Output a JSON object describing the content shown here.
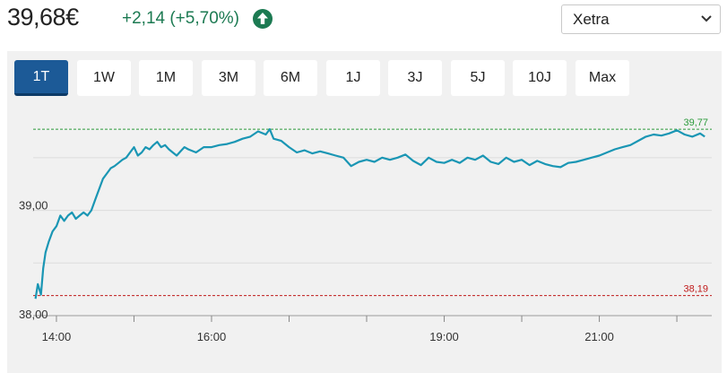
{
  "header": {
    "price": "39,68€",
    "change": "+2,14 (+5,70%)",
    "change_color": "#1c7a52",
    "trend_icon": "arrow-up-circle-icon",
    "exchange": {
      "selected": "Xetra"
    }
  },
  "tabs": [
    {
      "label": "1T",
      "active": true
    },
    {
      "label": "1W",
      "active": false
    },
    {
      "label": "1M",
      "active": false
    },
    {
      "label": "3M",
      "active": false
    },
    {
      "label": "6M",
      "active": false
    },
    {
      "label": "1J",
      "active": false
    },
    {
      "label": "3J",
      "active": false
    },
    {
      "label": "5J",
      "active": false
    },
    {
      "label": "10J",
      "active": false
    },
    {
      "label": "Max",
      "active": false
    }
  ],
  "chart_data": {
    "type": "line",
    "title": "",
    "xlabel": "",
    "ylabel": "",
    "ylim": [
      38.0,
      39.95
    ],
    "xlim_hours": [
      13.7,
      22.45
    ],
    "yticks": [
      {
        "value": 38.0,
        "label": "38,00"
      },
      {
        "value": 39.0,
        "label": "39,00"
      }
    ],
    "xticks": [
      {
        "value": 14.0,
        "label": "14:00"
      },
      {
        "value": 16.0,
        "label": "16:00"
      },
      {
        "value": 19.0,
        "label": "19:00"
      },
      {
        "value": 21.0,
        "label": "21:00"
      }
    ],
    "reference_lines": [
      {
        "value": 39.77,
        "label": "39,77",
        "color": "#2a9a3a"
      },
      {
        "value": 38.19,
        "label": "38,19",
        "color": "#c01a1a"
      }
    ],
    "line_color": "#1a96b4",
    "grid": true,
    "series": [
      {
        "x": [
          13.73,
          13.76,
          13.8,
          13.83,
          13.86,
          13.9,
          13.95,
          14.0,
          14.05,
          14.1,
          14.15,
          14.2,
          14.25,
          14.3,
          14.35,
          14.4,
          14.45,
          14.5,
          14.55,
          14.6,
          14.65,
          14.7,
          14.75,
          14.8,
          14.85,
          14.9,
          14.95,
          15.0,
          15.05,
          15.1,
          15.15,
          15.2,
          15.25,
          15.3,
          15.35,
          15.4,
          15.45,
          15.5,
          15.55,
          15.6,
          15.65,
          15.7,
          15.8,
          15.9,
          16.0,
          16.1,
          16.2,
          16.3,
          16.4,
          16.5,
          16.6,
          16.7,
          16.75,
          16.8,
          16.9,
          17.0,
          17.1,
          17.2,
          17.3,
          17.4,
          17.5,
          17.6,
          17.7,
          17.8,
          17.9,
          18.0,
          18.1,
          18.2,
          18.3,
          18.4,
          18.5,
          18.6,
          18.7,
          18.8,
          18.9,
          19.0,
          19.1,
          19.2,
          19.3,
          19.4,
          19.5,
          19.6,
          19.7,
          19.8,
          19.9,
          20.0,
          20.1,
          20.2,
          20.3,
          20.4,
          20.5,
          20.6,
          20.7,
          20.8,
          20.9,
          21.0,
          21.1,
          21.2,
          21.3,
          21.4,
          21.5,
          21.6,
          21.7,
          21.8,
          21.9,
          22.0,
          22.1,
          22.2,
          22.3,
          22.36
        ],
        "y": [
          38.16,
          38.3,
          38.2,
          38.45,
          38.6,
          38.7,
          38.8,
          38.85,
          38.95,
          38.9,
          38.95,
          38.98,
          38.92,
          38.95,
          38.98,
          38.95,
          39.0,
          39.1,
          39.2,
          39.3,
          39.35,
          39.4,
          39.42,
          39.45,
          39.48,
          39.5,
          39.55,
          39.6,
          39.52,
          39.55,
          39.6,
          39.58,
          39.62,
          39.65,
          39.6,
          39.62,
          39.58,
          39.55,
          39.52,
          39.56,
          39.6,
          39.58,
          39.55,
          39.6,
          39.6,
          39.62,
          39.63,
          39.65,
          39.68,
          39.7,
          39.75,
          39.72,
          39.77,
          39.68,
          39.66,
          39.6,
          39.55,
          39.57,
          39.54,
          39.56,
          39.54,
          39.52,
          39.5,
          39.42,
          39.46,
          39.48,
          39.46,
          39.5,
          39.48,
          39.5,
          39.53,
          39.47,
          39.43,
          39.5,
          39.46,
          39.45,
          39.48,
          39.45,
          39.5,
          39.48,
          39.52,
          39.46,
          39.44,
          39.5,
          39.46,
          39.48,
          39.43,
          39.47,
          39.44,
          39.42,
          39.41,
          39.45,
          39.46,
          39.48,
          39.5,
          39.52,
          39.55,
          39.58,
          39.6,
          39.62,
          39.66,
          39.7,
          39.72,
          39.71,
          39.73,
          39.76,
          39.72,
          39.7,
          39.73,
          39.7
        ]
      }
    ]
  }
}
